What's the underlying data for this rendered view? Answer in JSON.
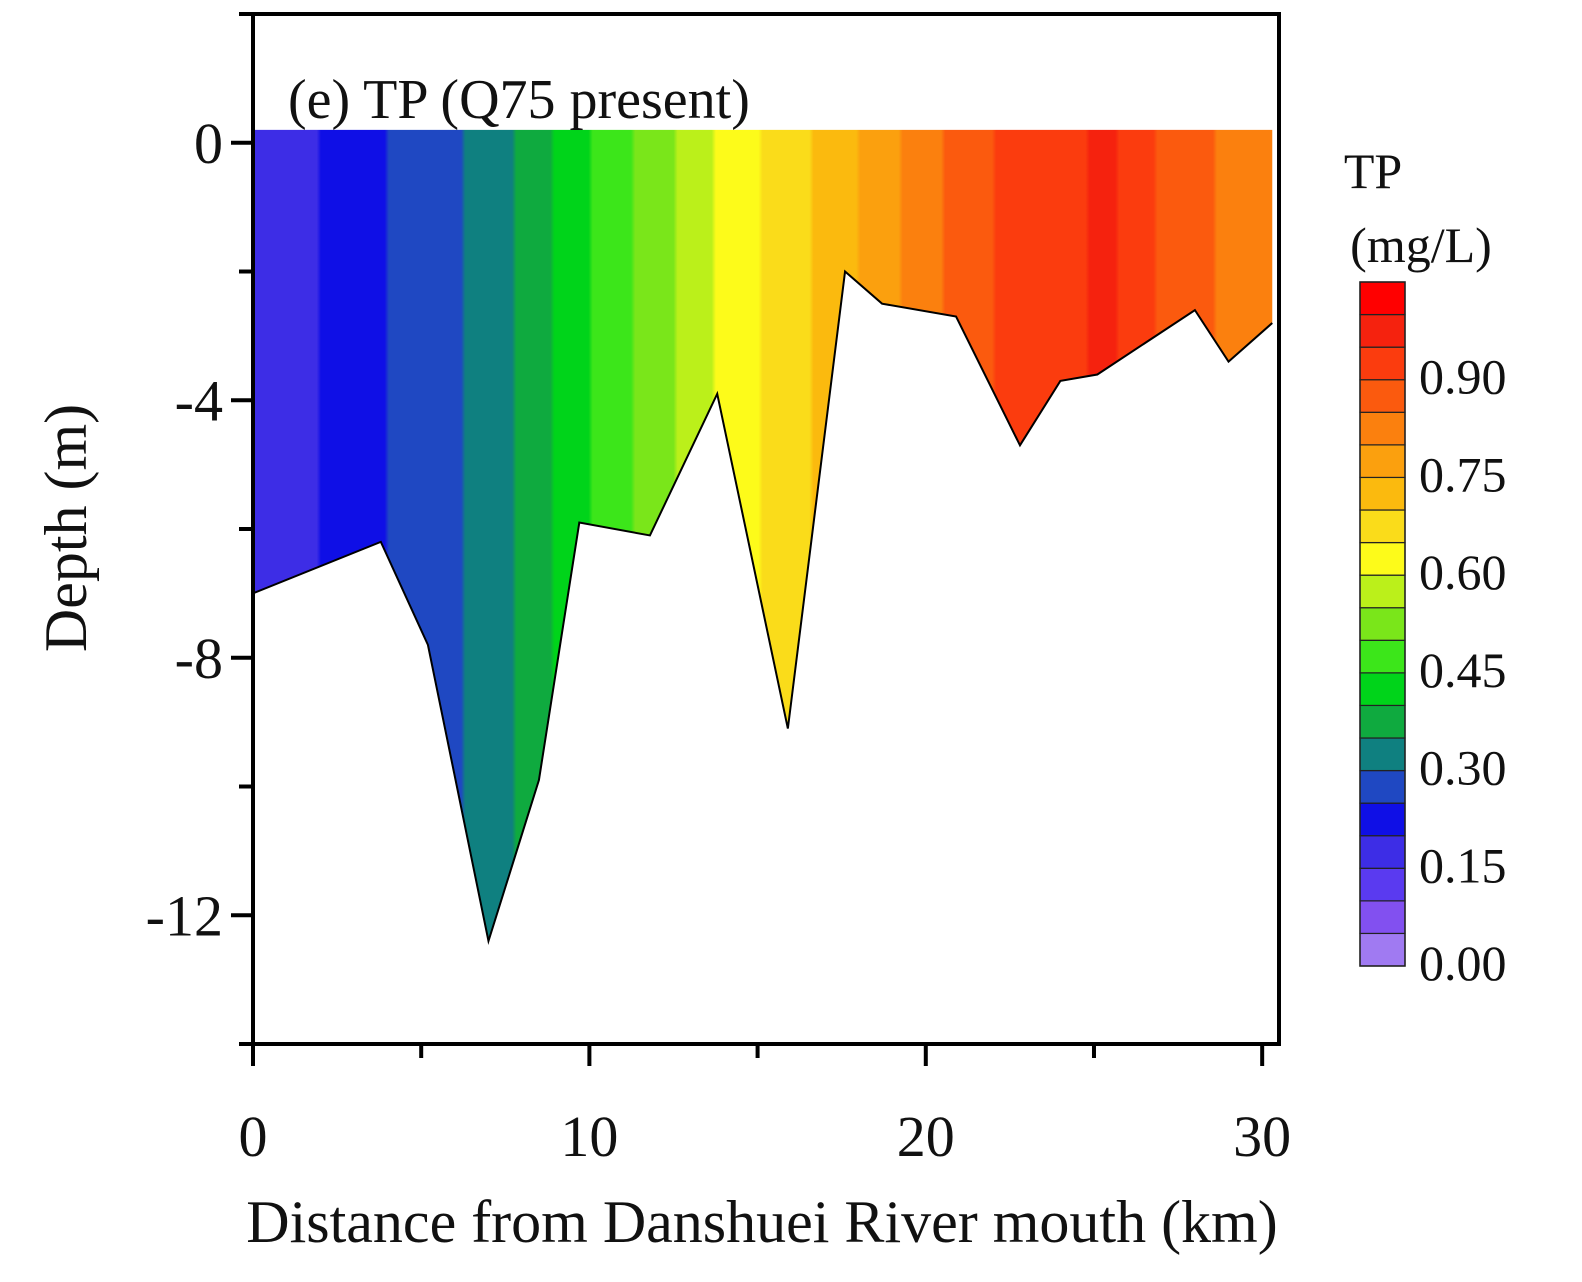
{
  "chart_data": {
    "type": "heatmap",
    "subtype": "depth-distance contour section",
    "title": "(e) TP (Q75 present)",
    "xlabel": "Distance from Danshuei River mouth (km)",
    "ylabel": "Depth (m)",
    "xlim": [
      0,
      30.5
    ],
    "ylim": [
      -14,
      2
    ],
    "x_ticks": [
      0,
      10,
      20,
      30
    ],
    "x_minor_ticks": [
      5,
      15,
      25
    ],
    "y_ticks": [
      0,
      -4,
      -8,
      -12
    ],
    "y_minor_ticks": [
      2,
      -2,
      -6,
      -10,
      -14
    ],
    "surface_level": 0.2,
    "bed_profile": {
      "x": [
        0,
        3.8,
        5.2,
        7.0,
        8.5,
        9.7,
        11.8,
        13.8,
        15.9,
        17.6,
        18.7,
        20.9,
        22.8,
        24.0,
        25.1,
        28.0,
        29.0,
        30.3
      ],
      "depth": [
        -7.0,
        -6.2,
        -7.8,
        -12.4,
        -9.9,
        -5.9,
        -6.1,
        -3.9,
        -9.1,
        -2.0,
        -2.5,
        -2.7,
        -4.7,
        -3.7,
        -3.6,
        -2.6,
        -3.4,
        -2.8
      ]
    },
    "contour_field": {
      "x": [
        0,
        2,
        4,
        5.5,
        7,
        8.5,
        10,
        12,
        14,
        16,
        18,
        20,
        22,
        24,
        25.5,
        27,
        29,
        30.3
      ],
      "TP_mg_per_L": [
        0.19,
        0.2,
        0.25,
        0.28,
        0.32,
        0.38,
        0.45,
        0.53,
        0.61,
        0.68,
        0.75,
        0.83,
        0.9,
        0.94,
        0.96,
        0.89,
        0.84,
        0.8
      ]
    },
    "colorbar": {
      "title": "TP",
      "unit": "(mg/L)",
      "min": 0.0,
      "max": 1.05,
      "step": 0.05,
      "tick_values": [
        "0.00",
        "0.15",
        "0.30",
        "0.45",
        "0.60",
        "0.75",
        "0.90"
      ],
      "colors": [
        "#a07af2",
        "#8250f0",
        "#5a3af0",
        "#3d2de6",
        "#0f0fe6",
        "#1f48c2",
        "#0f8080",
        "#0faa3f",
        "#00d41a",
        "#3ce61a",
        "#7ae61a",
        "#bbf01a",
        "#fdfb1a",
        "#fadc1a",
        "#fbba0e",
        "#fba00e",
        "#fb800e",
        "#fb5a0e",
        "#fb3c0e",
        "#f5220e",
        "#ff0000"
      ]
    }
  }
}
